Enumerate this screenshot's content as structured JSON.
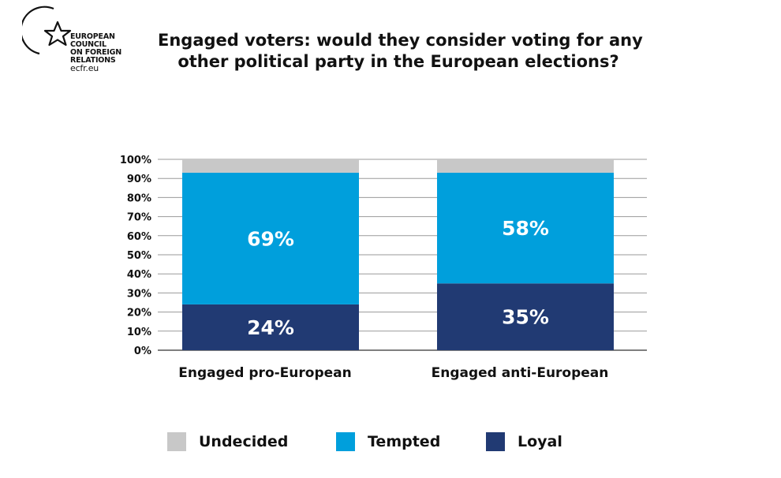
{
  "logo": {
    "name_lines": [
      "EUROPEAN",
      "COUNCIL",
      "ON FOREIGN",
      "RELATIONS"
    ],
    "url": "ecfr.eu"
  },
  "title": {
    "line1": "Engaged voters: would they consider voting for any",
    "line2": "other political party in the European elections?"
  },
  "colors": {
    "undecided": "#c8c8c8",
    "tempted": "#009fdc",
    "loyal": "#213a73",
    "grid": "#9a9a9a"
  },
  "chart_data": {
    "type": "bar",
    "stacked": true,
    "title": "Engaged voters: would they consider voting for any other political party in the European elections?",
    "categories": [
      "Engaged pro-European",
      "Engaged anti-European"
    ],
    "series": [
      {
        "name": "Loyal",
        "values": [
          24,
          35
        ],
        "labels": [
          "24%",
          "35%"
        ]
      },
      {
        "name": "Tempted",
        "values": [
          69,
          58
        ],
        "labels": [
          "69%",
          "58%"
        ]
      },
      {
        "name": "Undecided",
        "values": [
          7,
          7
        ],
        "labels": [
          "",
          ""
        ]
      }
    ],
    "ylim": [
      0,
      100
    ],
    "yticks": [
      "0%",
      "10%",
      "20%",
      "30%",
      "40%",
      "50%",
      "60%",
      "70%",
      "80%",
      "90%",
      "100%"
    ],
    "xlabel": "",
    "ylabel": "",
    "grid": true,
    "legend": [
      {
        "label": "Undecided",
        "color": "#c8c8c8"
      },
      {
        "label": "Tempted",
        "color": "#009fdc"
      },
      {
        "label": "Loyal",
        "color": "#213a73"
      }
    ],
    "legend_position": "bottom"
  }
}
